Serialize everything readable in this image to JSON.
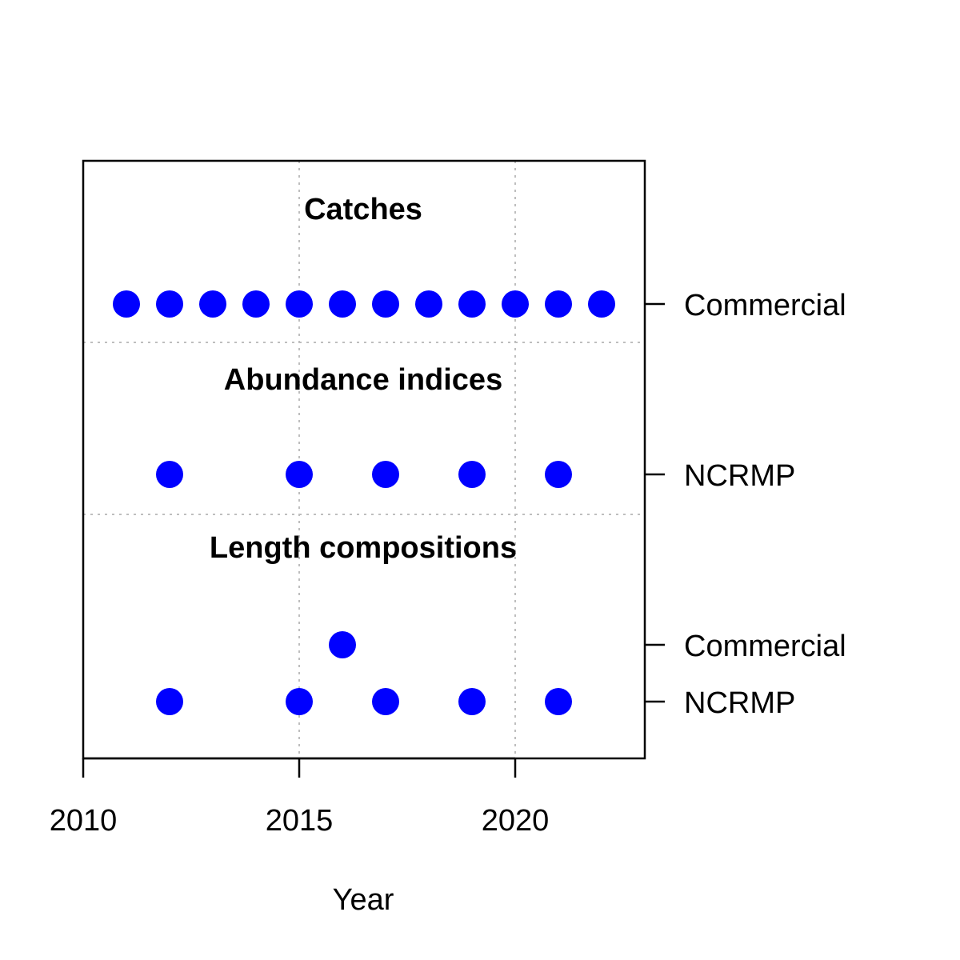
{
  "chart_data": {
    "type": "scatter",
    "title": "",
    "xlabel": "Year",
    "ylabel": "",
    "xlim": [
      2010,
      2023
    ],
    "x_ticks": [
      2010,
      2015,
      2020
    ],
    "grid": true,
    "marker_color": "#0000ff",
    "sections": [
      {
        "title": "Catches",
        "series": [
          {
            "name": "Commercial",
            "x": [
              2011,
              2012,
              2013,
              2014,
              2015,
              2016,
              2017,
              2018,
              2019,
              2020,
              2021,
              2022
            ]
          }
        ]
      },
      {
        "title": "Abundance indices",
        "series": [
          {
            "name": "NCRMP",
            "x": [
              2012,
              2015,
              2017,
              2019,
              2021
            ]
          }
        ]
      },
      {
        "title": "Length compositions",
        "series": [
          {
            "name": "Commercial",
            "x": [
              2016
            ]
          },
          {
            "name": "NCRMP",
            "x": [
              2012,
              2015,
              2017,
              2019,
              2021
            ]
          }
        ]
      }
    ]
  }
}
